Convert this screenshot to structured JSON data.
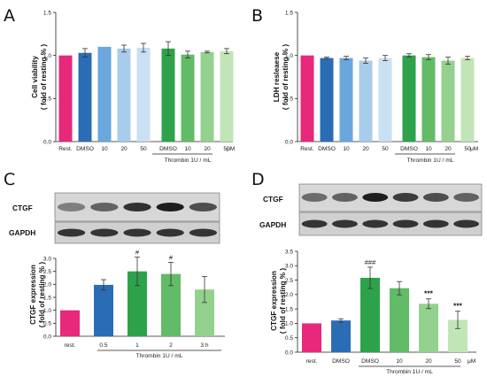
{
  "panels": {
    "a": "A",
    "b": "B",
    "c": "C",
    "d": "D"
  },
  "colors": {
    "magenta": "#e8287a",
    "blue_dark": "#2b6db5",
    "blue_mid": "#6aa7dc",
    "blue_light": "#a8cceb",
    "blue_pale": "#c9dff2",
    "green_dark": "#2ea24b",
    "green_mid": "#62bb66",
    "green_light": "#94d18e",
    "green_pale": "#c2e5b7"
  },
  "blots": {
    "c": {
      "top_label": "CTGF",
      "bottom_label": "GAPDH"
    },
    "d": {
      "top_label": "CTGF",
      "bottom_label": "GAPDH"
    }
  },
  "chart_data": [
    {
      "id": "A",
      "type": "bar",
      "title": "",
      "xlabel": "",
      "ylabel": "Cell viability\n( fold of resting % )",
      "ylim": [
        0,
        1.5
      ],
      "yticks": [
        "0.0",
        "0.5",
        "1.0",
        "1.5"
      ],
      "categories": [
        "Rest.",
        "DMSO",
        "10",
        "20",
        "50",
        "DMSO",
        "10",
        "20",
        "50"
      ],
      "values": [
        1.0,
        1.03,
        1.1,
        1.08,
        1.09,
        1.08,
        1.01,
        1.04,
        1.05
      ],
      "errors": [
        0.0,
        0.05,
        0.0,
        0.04,
        0.05,
        0.08,
        0.04,
        0.01,
        0.03
      ],
      "colors": [
        "#e8287a",
        "#2b6db5",
        "#6aa7dc",
        "#a8cceb",
        "#c9dff2",
        "#2ea24b",
        "#62bb66",
        "#94d18e",
        "#c2e5b7"
      ],
      "unit_label": "μM",
      "group_label": "Thrombin 1U / mL",
      "grid": false
    },
    {
      "id": "B",
      "type": "bar",
      "title": "",
      "xlabel": "",
      "ylabel": "LDH resleaese\n( fold of resting % )",
      "ylim": [
        0,
        1.5
      ],
      "yticks": [
        "0.0",
        "0.5",
        "1.0",
        "1.5"
      ],
      "categories": [
        "Rest.",
        "DMSO",
        "10",
        "20",
        "50",
        "DMSO",
        "10",
        "20",
        "50"
      ],
      "values": [
        1.0,
        0.97,
        0.97,
        0.94,
        0.97,
        1.0,
        0.98,
        0.94,
        0.97
      ],
      "errors": [
        0.0,
        0.01,
        0.02,
        0.03,
        0.03,
        0.02,
        0.03,
        0.04,
        0.02
      ],
      "colors": [
        "#e8287a",
        "#2b6db5",
        "#6aa7dc",
        "#a8cceb",
        "#c9dff2",
        "#2ea24b",
        "#62bb66",
        "#94d18e",
        "#c2e5b7"
      ],
      "unit_label": "μM",
      "group_label": "Thrombin 1U / mL",
      "grid": false
    },
    {
      "id": "C",
      "type": "bar",
      "title": "",
      "xlabel": "",
      "ylabel": "CTGF expression\n( fold of resting % )",
      "ylim": [
        0,
        3.0
      ],
      "yticks": [
        "0.0",
        "0.5",
        "1.0",
        "1.5",
        "2.0",
        "2.5",
        "3.0"
      ],
      "categories": [
        "rest.",
        "0.5",
        "1",
        "2",
        "3 h"
      ],
      "values": [
        1.0,
        1.98,
        2.5,
        2.4,
        1.8
      ],
      "errors": [
        0.0,
        0.2,
        0.55,
        0.45,
        0.5
      ],
      "significance": [
        "",
        "",
        "#",
        "#",
        ""
      ],
      "colors": [
        "#e8287a",
        "#2b6db5",
        "#2ea24b",
        "#62bb66",
        "#94d18e"
      ],
      "group_label": "Thrombin 1U / mL",
      "grid": false
    },
    {
      "id": "D",
      "type": "bar",
      "title": "",
      "xlabel": "",
      "ylabel": "CTGF expression\n( fold of resting % )",
      "ylim": [
        0,
        3.5
      ],
      "yticks": [
        "0.0",
        "0.5",
        "1.0",
        "1.5",
        "2.0",
        "2.5",
        "3.0",
        "3.5"
      ],
      "categories": [
        "rest.",
        "DMSO",
        "DMSO",
        "10",
        "20",
        "50"
      ],
      "values": [
        1.0,
        1.1,
        2.58,
        2.22,
        1.68,
        1.12
      ],
      "errors": [
        0.0,
        0.06,
        0.37,
        0.23,
        0.17,
        0.3
      ],
      "significance": [
        "",
        "",
        "###",
        "",
        "***",
        "***"
      ],
      "colors": [
        "#e8287a",
        "#2b6db5",
        "#2ea24b",
        "#62bb66",
        "#94d18e",
        "#c2e5b7"
      ],
      "unit_label": "μM",
      "group_label": "Thrombin 1U / mL",
      "grid": false
    }
  ]
}
